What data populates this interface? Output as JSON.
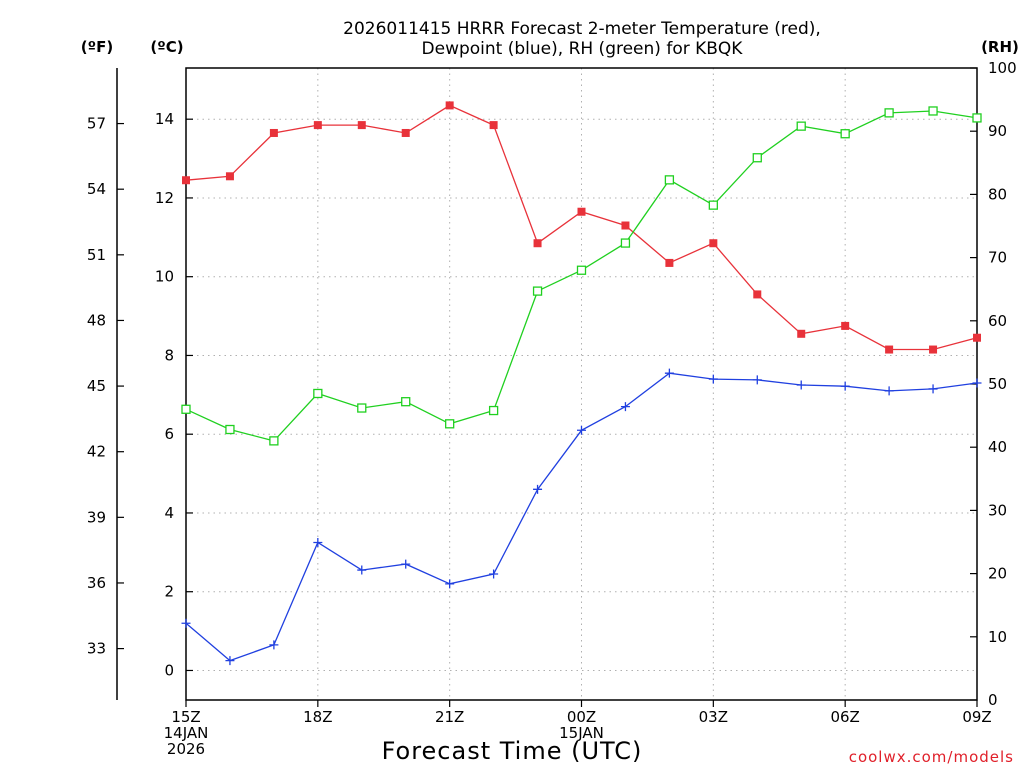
{
  "chart_data": {
    "type": "line",
    "title": [
      "2026011415 HRRR Forecast 2-meter Temperature (red),",
      "Dewpoint (blue), RH (green) for KBQK"
    ],
    "xlabel": "Forecast Time (UTC)",
    "credit": "coolwx.com/models",
    "unit_labels": {
      "fahrenheit": "(ºF)",
      "celsius": "(ºC)",
      "rh": "(RH)"
    },
    "x_hours": [
      0,
      1,
      2,
      3,
      4,
      5,
      6,
      7,
      8,
      9,
      10,
      11,
      12,
      13,
      14,
      15,
      16,
      17,
      18
    ],
    "x_ticks": [
      {
        "hour": 0,
        "lines": [
          "15Z",
          "14JAN",
          "2026"
        ]
      },
      {
        "hour": 3,
        "lines": [
          "18Z"
        ]
      },
      {
        "hour": 6,
        "lines": [
          "21Z"
        ]
      },
      {
        "hour": 9,
        "lines": [
          "00Z",
          "15JAN"
        ]
      },
      {
        "hour": 12,
        "lines": [
          "03Z"
        ]
      },
      {
        "hour": 15,
        "lines": [
          "06Z"
        ]
      },
      {
        "hour": 18,
        "lines": [
          "09Z"
        ]
      }
    ],
    "celsius_axis": {
      "range": [
        -0.75,
        15.3
      ],
      "ticks": [
        "0",
        "2",
        "4",
        "6",
        "8",
        "10",
        "12",
        "14"
      ]
    },
    "fahrenheit_axis": {
      "ticks": [
        "33",
        "36",
        "39",
        "42",
        "45",
        "48",
        "51",
        "54",
        "57"
      ]
    },
    "rh_axis": {
      "range": [
        0,
        100
      ],
      "ticks": [
        "0",
        "10",
        "20",
        "30",
        "40",
        "50",
        "60",
        "70",
        "80",
        "90",
        "100"
      ]
    },
    "series": [
      {
        "name": "Temperature",
        "axis": "celsius",
        "color": "#e8323a",
        "marker": "filled-square",
        "values": [
          12.45,
          12.55,
          13.65,
          13.85,
          13.85,
          13.65,
          14.35,
          13.85,
          10.85,
          11.65,
          11.3,
          10.35,
          10.85,
          9.55,
          8.55,
          8.75,
          8.15,
          8.15,
          8.45
        ]
      },
      {
        "name": "Dewpoint",
        "axis": "celsius",
        "color": "#2040e0",
        "marker": "plus",
        "values": [
          1.2,
          0.25,
          0.65,
          3.25,
          2.55,
          2.7,
          2.2,
          2.45,
          4.6,
          6.1,
          6.7,
          7.55,
          7.4,
          7.38,
          7.25,
          7.22,
          7.1,
          7.15,
          7.3
        ]
      },
      {
        "name": "RH",
        "axis": "rh",
        "color": "#20d020",
        "marker": "open-square",
        "values": [
          46,
          42.8,
          41,
          48.5,
          46.2,
          47.2,
          43.7,
          45.8,
          64.7,
          68,
          72.3,
          82.3,
          78.3,
          85.8,
          90.8,
          89.6,
          92.9,
          93.2,
          92.1
        ]
      }
    ]
  }
}
